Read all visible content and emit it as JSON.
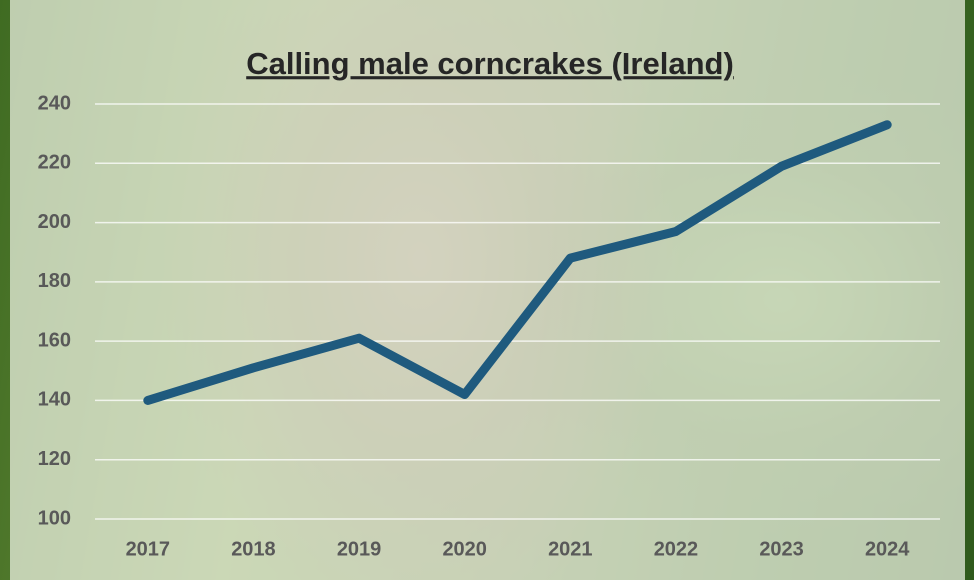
{
  "chart_data": {
    "type": "line",
    "title": "Calling male corncrakes (Ireland)",
    "categories": [
      "2017",
      "2018",
      "2019",
      "2020",
      "2021",
      "2022",
      "2023",
      "2024"
    ],
    "values": [
      140,
      151,
      161,
      142,
      188,
      197,
      219,
      233
    ],
    "color": "#1f5a7e",
    "ylim": [
      100,
      240
    ],
    "yticks": [
      100,
      120,
      140,
      160,
      180,
      200,
      220,
      240
    ],
    "grid": true
  }
}
